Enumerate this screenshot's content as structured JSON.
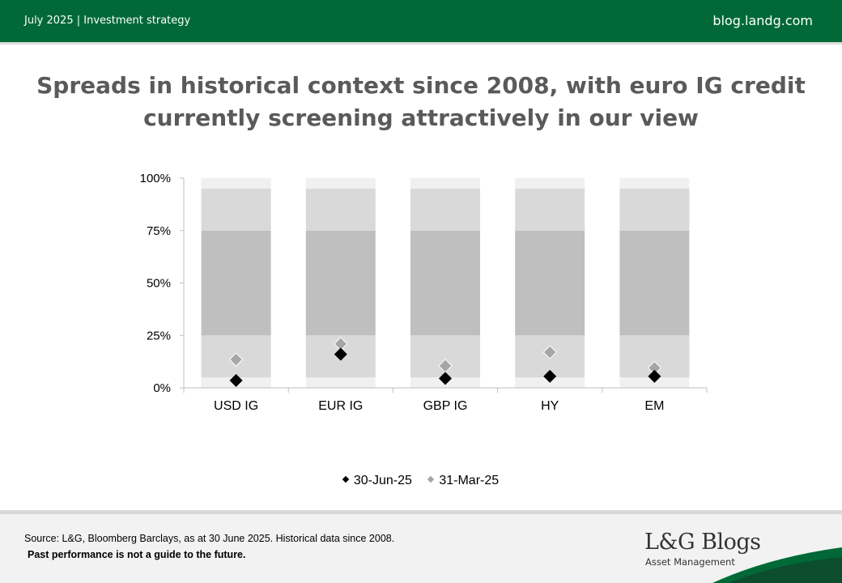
{
  "header": {
    "left_text": "July 2025 | Investment strategy",
    "right_text": "blog.landg.com"
  },
  "title": "Spreads in historical context since 2008, with euro IG credit currently screening attractively in our view",
  "chart_data": {
    "type": "scatter",
    "title": "",
    "xlabel": "",
    "ylabel": "",
    "categories": [
      "USD IG",
      "EUR IG",
      "GBP IG",
      "HY",
      "EM"
    ],
    "ylim": [
      0,
      100
    ],
    "yticks": [
      0,
      25,
      50,
      75,
      100
    ],
    "ytick_labels": [
      "0%",
      "25%",
      "50%",
      "75%",
      "100%"
    ],
    "percentile_bands": [
      {
        "from": 0,
        "to": 5,
        "color": "#f0f0f0"
      },
      {
        "from": 5,
        "to": 25,
        "color": "#d9d9d9"
      },
      {
        "from": 25,
        "to": 75,
        "color": "#bfbfbf"
      },
      {
        "from": 75,
        "to": 95,
        "color": "#d9d9d9"
      },
      {
        "from": 95,
        "to": 100,
        "color": "#f0f0f0"
      }
    ],
    "series": [
      {
        "name": "30-Jun-25",
        "values": [
          3.5,
          16,
          4.5,
          5.5,
          5.5
        ],
        "color": "#000000"
      },
      {
        "name": "31-Mar-25",
        "values": [
          13.5,
          21,
          10.5,
          17,
          9.5
        ],
        "color": "#a6a6a6"
      }
    ],
    "legend_position": "bottom",
    "grid": false
  },
  "footer": {
    "source": "Source: L&G, Bloomberg Barclays, as at 30 June 2025. Historical data since 2008.",
    "disclaimer": "Past performance is not a guide to the future.",
    "logo_main": "L&G Blogs",
    "logo_sub": "Asset Management"
  },
  "colors": {
    "brand_green": "#006937",
    "title_gray": "#5a5a5a"
  }
}
